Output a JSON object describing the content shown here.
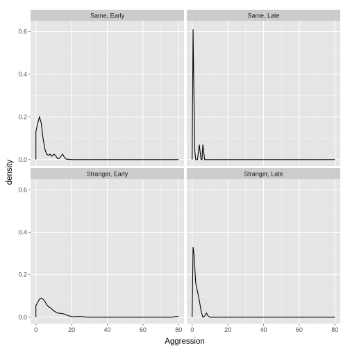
{
  "chart_data": {
    "type": "line",
    "subtype": "facetted density",
    "xlabel": "Aggression",
    "ylabel": "density",
    "xlim": [
      -3,
      83
    ],
    "ylim": [
      -0.03,
      0.65
    ],
    "x_ticks": [
      0,
      20,
      40,
      60,
      80
    ],
    "y_ticks": [
      0.0,
      0.2,
      0.4,
      0.6
    ],
    "x_tick_labels": [
      "0",
      "20",
      "40",
      "60",
      "80"
    ],
    "y_tick_labels": [
      "0.0",
      "0.2",
      "0.4",
      "0.6"
    ],
    "grid": true,
    "facets": [
      {
        "label": "Same, Early",
        "points": [
          [
            0,
            0
          ],
          [
            0,
            0.13
          ],
          [
            1,
            0.17
          ],
          [
            2,
            0.2
          ],
          [
            3,
            0.17
          ],
          [
            4,
            0.1
          ],
          [
            5,
            0.05
          ],
          [
            6,
            0.025
          ],
          [
            7,
            0.02
          ],
          [
            8,
            0.025
          ],
          [
            9,
            0.015
          ],
          [
            10,
            0.025
          ],
          [
            11,
            0.02
          ],
          [
            12,
            0.005
          ],
          [
            13,
            0.005
          ],
          [
            14,
            0.015
          ],
          [
            15,
            0.025
          ],
          [
            16,
            0.01
          ],
          [
            17,
            0.002
          ],
          [
            20,
            0
          ],
          [
            80,
            0
          ]
        ]
      },
      {
        "label": "Same, Late",
        "points": [
          [
            0,
            0
          ],
          [
            0.5,
            0.61
          ],
          [
            1,
            0.3
          ],
          [
            1.5,
            0.04
          ],
          [
            2,
            0
          ],
          [
            3,
            0
          ],
          [
            4,
            0.07
          ],
          [
            5,
            0
          ],
          [
            5.5,
            0
          ],
          [
            6,
            0.07
          ],
          [
            7,
            0
          ],
          [
            10,
            0
          ],
          [
            80,
            0
          ]
        ]
      },
      {
        "label": "Stranger, Early",
        "points": [
          [
            0,
            0
          ],
          [
            0,
            0.055
          ],
          [
            1,
            0.07
          ],
          [
            2,
            0.085
          ],
          [
            3,
            0.09
          ],
          [
            4,
            0.085
          ],
          [
            5,
            0.075
          ],
          [
            6,
            0.06
          ],
          [
            7,
            0.05
          ],
          [
            8,
            0.045
          ],
          [
            9,
            0.038
          ],
          [
            10,
            0.03
          ],
          [
            11,
            0.025
          ],
          [
            12,
            0.02
          ],
          [
            14,
            0.018
          ],
          [
            16,
            0.015
          ],
          [
            18,
            0.008
          ],
          [
            20,
            0.003
          ],
          [
            22,
            0.002
          ],
          [
            24,
            0.004
          ],
          [
            26,
            0.003
          ],
          [
            28,
            0.001
          ],
          [
            30,
            0
          ],
          [
            76,
            0
          ],
          [
            78,
            0.003
          ],
          [
            80,
            0.004
          ]
        ]
      },
      {
        "label": "Stranger, Late",
        "points": [
          [
            0,
            0
          ],
          [
            0.5,
            0.33
          ],
          [
            1,
            0.3
          ],
          [
            2,
            0.16
          ],
          [
            3,
            0.12
          ],
          [
            4,
            0.08
          ],
          [
            5,
            0.03
          ],
          [
            6,
            0
          ],
          [
            7,
            0.005
          ],
          [
            8,
            0.02
          ],
          [
            9,
            0.005
          ],
          [
            10,
            0
          ],
          [
            80,
            0
          ]
        ]
      }
    ]
  }
}
